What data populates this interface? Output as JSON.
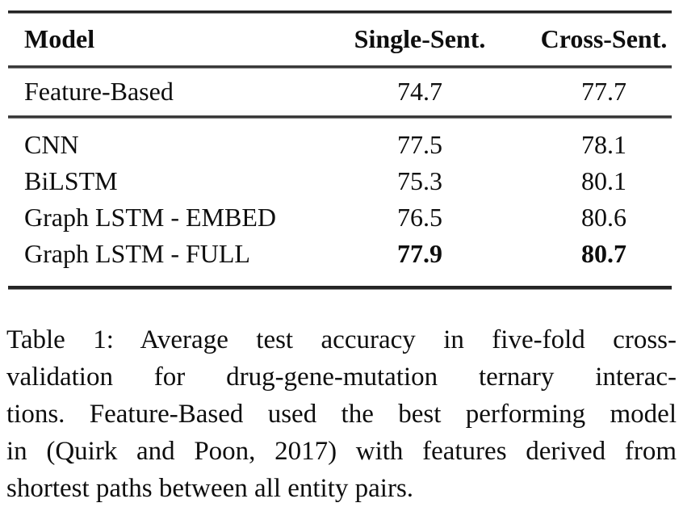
{
  "page": {
    "background_color": "#ffffff",
    "text_color": "#0e0e0e",
    "rule_color": "#252525"
  },
  "table": {
    "header": {
      "model": "Model",
      "single": "Single-Sent.",
      "cross": "Cross-Sent."
    },
    "feature_row": {
      "model": "Feature-Based",
      "single": "74.7",
      "cross": "77.7",
      "values_bold": false
    },
    "body_rows": [
      {
        "model": "CNN",
        "single": "77.5",
        "cross": "78.1",
        "values_bold": false
      },
      {
        "model": "BiLSTM",
        "single": "75.3",
        "cross": "80.1",
        "values_bold": false
      },
      {
        "model": "Graph LSTM - EMBED",
        "single": "76.5",
        "cross": "80.6",
        "values_bold": false
      },
      {
        "model": "Graph LSTM - FULL",
        "single": "77.9",
        "cross": "80.7",
        "values_bold": true
      }
    ]
  },
  "caption": {
    "label": "Table 1:",
    "lines": [
      "Table 1: Average test accuracy in five-fold cross-",
      "validation for drug-gene-mutation ternary interac-",
      "tions. Feature-Based used the best performing model",
      "in (Quirk and Poon, 2017) with features derived from",
      "shortest paths between all entity pairs."
    ],
    "full_text": "Table 1: Average test accuracy in five-fold cross-validation for drug-gene-mutation ternary interactions. Feature-Based used the best performing model in (Quirk and Poon, 2017) with features derived from shortest paths between all entity pairs."
  },
  "chart_data": {
    "type": "table",
    "title": "Table 1: Average test accuracy in five-fold cross-validation for drug-gene-mutation ternary interactions",
    "columns": [
      "Model",
      "Single-Sent.",
      "Cross-Sent."
    ],
    "rows": [
      [
        "Feature-Based",
        74.7,
        77.7
      ],
      [
        "CNN",
        77.5,
        78.1
      ],
      [
        "BiLSTM",
        75.3,
        80.1
      ],
      [
        "Graph LSTM - EMBED",
        76.5,
        80.6
      ],
      [
        "Graph LSTM - FULL",
        77.9,
        80.7
      ]
    ],
    "notes": "Best results (77.9 and 80.7) in the Graph LSTM - FULL row are shown in bold; Feature-Based row is separated from neural rows by a horizontal rule."
  }
}
